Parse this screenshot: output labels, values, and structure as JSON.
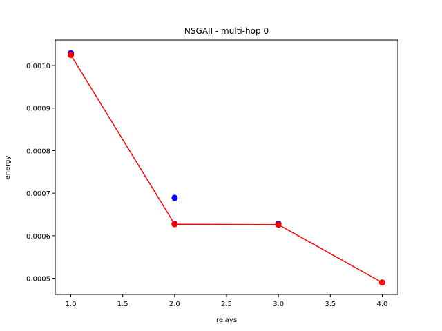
{
  "chart_data": {
    "type": "scatter",
    "title": "NSGAII - multi-hop 0",
    "xlabel": "relays",
    "ylabel": "energy",
    "xlim": [
      0.85,
      4.15
    ],
    "ylim": [
      0.000462,
      0.00106
    ],
    "xticks": [
      1.0,
      1.5,
      2.0,
      2.5,
      3.0,
      3.5,
      4.0
    ],
    "xtick_labels": [
      "1.0",
      "1.5",
      "2.0",
      "2.5",
      "3.0",
      "3.5",
      "4.0"
    ],
    "yticks": [
      0.0005,
      0.0006,
      0.0007,
      0.0008,
      0.0009,
      0.001
    ],
    "ytick_labels": [
      "0.0005",
      "0.0006",
      "0.0007",
      "0.0008",
      "0.0009",
      "0.0010"
    ],
    "grid": false,
    "series": [
      {
        "kind": "scatter",
        "color": "#0000ff",
        "points": [
          {
            "x": 1.0,
            "y": 0.001029
          },
          {
            "x": 2.0,
            "y": 0.000689
          },
          {
            "x": 2.0,
            "y": 0.000628
          },
          {
            "x": 3.0,
            "y": 0.000628
          },
          {
            "x": 4.0,
            "y": 0.00049
          }
        ]
      },
      {
        "kind": "line",
        "color": "#ff0000",
        "markers": true,
        "points": [
          {
            "x": 1.0,
            "y": 0.001025
          },
          {
            "x": 2.0,
            "y": 0.000627
          },
          {
            "x": 3.0,
            "y": 0.000626
          },
          {
            "x": 4.0,
            "y": 0.00049
          }
        ]
      }
    ]
  }
}
